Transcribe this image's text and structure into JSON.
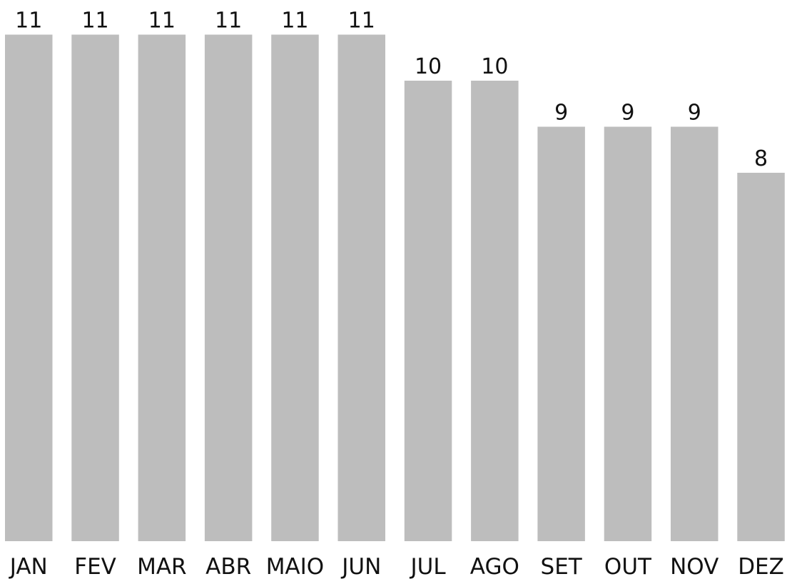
{
  "chart_data": {
    "type": "bar",
    "categories": [
      "JAN",
      "FEV",
      "MAR",
      "ABR",
      "MAIO",
      "JUN",
      "JUL",
      "AGO",
      "SET",
      "OUT",
      "NOV",
      "DEZ"
    ],
    "values": [
      11,
      11,
      11,
      11,
      11,
      11,
      10,
      10,
      9,
      9,
      9,
      8
    ],
    "title": "",
    "xlabel": "",
    "ylabel": "",
    "grid": false,
    "legend": "none",
    "bar_color": "#bdbdbd"
  }
}
